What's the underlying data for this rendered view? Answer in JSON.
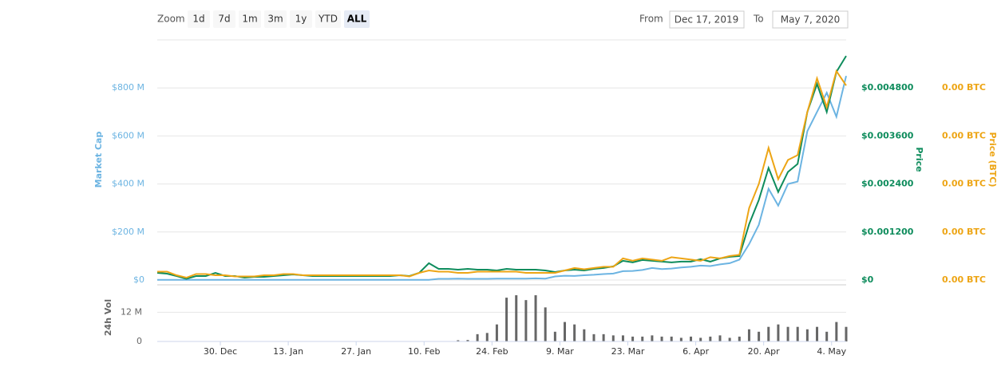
{
  "controls": {
    "zoom_label": "Zoom",
    "buttons": [
      "1d",
      "7d",
      "1m",
      "3m",
      "1y",
      "YTD",
      "ALL"
    ],
    "active": "ALL",
    "from_label": "From",
    "from_value": "Dec 17, 2019",
    "to_label": "To",
    "to_value": "May 7, 2020"
  },
  "chart_data": {
    "type": "line",
    "x": [
      0,
      2,
      4,
      6,
      8,
      10,
      12,
      14,
      16,
      18,
      20,
      22,
      24,
      26,
      28,
      30,
      32,
      34,
      36,
      38,
      40,
      42,
      44,
      46,
      48,
      50,
      52,
      54,
      56,
      58,
      60,
      62,
      64,
      66,
      68,
      70,
      72,
      74,
      76,
      78,
      80,
      82,
      84,
      86,
      88,
      90,
      92,
      94,
      96,
      98,
      100,
      102,
      104,
      106,
      108,
      110,
      112,
      114,
      116,
      118,
      120,
      122,
      124,
      126,
      128,
      130,
      132,
      134,
      136,
      138,
      140,
      142
    ],
    "xlim": [
      0,
      142
    ],
    "xticks": [
      {
        "value": 13,
        "label": "30. Dec"
      },
      {
        "value": 27,
        "label": "13. Jan"
      },
      {
        "value": 41,
        "label": "27. Jan"
      },
      {
        "value": 55,
        "label": "10. Feb"
      },
      {
        "value": 69,
        "label": "24. Feb"
      },
      {
        "value": 83,
        "label": "9. Mar"
      },
      {
        "value": 97,
        "label": "23. Mar"
      },
      {
        "value": 111,
        "label": "6. Apr"
      },
      {
        "value": 125,
        "label": "20. Apr"
      },
      {
        "value": 139,
        "label": "4. May"
      }
    ],
    "ylabel": "Market Cap",
    "ylim": [
      0,
      1000000000
    ],
    "yticks": [
      0,
      {
        "value": 200000000,
        "label": "$200 M"
      },
      {
        "value": 400000000,
        "label": "$400 M"
      },
      {
        "value": 600000000,
        "label": "$600 M"
      },
      {
        "value": 800000000,
        "label": "$800 M"
      }
    ],
    "yticks_zero_label": "$0",
    "y2label": "Price",
    "y2lim": [
      0,
      0.006
    ],
    "y2ticks": [
      {
        "value": 0,
        "label": "$0"
      },
      {
        "value": 0.0012,
        "label": "$0.001200"
      },
      {
        "value": 0.0024,
        "label": "$0.002400"
      },
      {
        "value": 0.0036,
        "label": "$0.003600"
      },
      {
        "value": 0.0048,
        "label": "$0.004800"
      }
    ],
    "y3label": "Price (BTC)",
    "y3lim": [
      0,
      1e-06
    ],
    "y3ticks": [
      {
        "value": 0,
        "label": "0.00 BTC"
      },
      {
        "value": 2e-07,
        "label": "0.00 BTC"
      },
      {
        "value": 4e-07,
        "label": "0.00 BTC"
      },
      {
        "value": 6e-07,
        "label": "0.00 BTC"
      },
      {
        "value": 8e-07,
        "label": "0.00 BTC"
      }
    ],
    "grid": true,
    "series": [
      {
        "name": "Market Cap",
        "color": "#6cb4e2",
        "axis": "y",
        "values": [
          1000000.0,
          1000000.0,
          1000000.0,
          1000000.0,
          1000000.0,
          1000000.0,
          1000000.0,
          1000000.0,
          1000000.0,
          1000000.0,
          1000000.0,
          1000000.0,
          1000000.0,
          1000000.0,
          1000000.0,
          1000000.0,
          1000000.0,
          1000000.0,
          1000000.0,
          1000000.0,
          1000000.0,
          1000000.0,
          1000000.0,
          1000000.0,
          1000000.0,
          1000000.0,
          1000000.0,
          1000000.0,
          1000000.0,
          5000000.0,
          5000000.0,
          6000000.0,
          5000000.0,
          5000000.0,
          5000000.0,
          6000000.0,
          6000000.0,
          6000000.0,
          6000000.0,
          7000000.0,
          6000000.0,
          15000000.0,
          18000000.0,
          17000000.0,
          20000000.0,
          22000000.0,
          25000000.0,
          27000000.0,
          37000000.0,
          38000000.0,
          42000000.0,
          50000000.0,
          46000000.0,
          48000000.0,
          52000000.0,
          55000000.0,
          60000000.0,
          58000000.0,
          65000000.0,
          70000000.0,
          85000000.0,
          150000000.0,
          230000000.0,
          380000000.0,
          310000000.0,
          400000000.0,
          410000000.0,
          620000000.0,
          700000000.0,
          780000000.0,
          680000000.0,
          850000000.0
        ]
      },
      {
        "name": "Price",
        "color": "#0e8c5c",
        "axis": "y2",
        "values": [
          0.00018,
          0.00016,
          0.0001,
          3e-05,
          0.0001,
          0.0001,
          0.00018,
          0.0001,
          0.0001,
          6e-05,
          8e-05,
          8e-05,
          0.0001,
          0.00012,
          0.00014,
          0.00012,
          0.0001,
          0.0001,
          0.0001,
          0.0001,
          0.0001,
          0.0001,
          0.0001,
          0.0001,
          0.0001,
          0.00012,
          0.0001,
          0.00018,
          0.00042,
          0.00028,
          0.00028,
          0.00026,
          0.00028,
          0.00026,
          0.00026,
          0.00024,
          0.00028,
          0.00026,
          0.00026,
          0.00026,
          0.00024,
          0.0002,
          0.00024,
          0.00026,
          0.00024,
          0.00028,
          0.0003,
          0.00034,
          0.00048,
          0.00044,
          0.0005,
          0.00048,
          0.00046,
          0.00044,
          0.00046,
          0.00046,
          0.00052,
          0.00046,
          0.00054,
          0.00058,
          0.0006,
          0.0014,
          0.002,
          0.0028,
          0.0022,
          0.0027,
          0.0029,
          0.0042,
          0.0049,
          0.0042,
          0.0052,
          0.0056
        ]
      },
      {
        "name": "Price (BTC)",
        "color": "#eda515",
        "axis": "y3",
        "values": [
          3.5e-08,
          3.5e-08,
          2e-08,
          1e-08,
          2.5e-08,
          2.5e-08,
          2e-08,
          2e-08,
          1.5e-08,
          1.5e-08,
          1.5e-08,
          2e-08,
          2e-08,
          2.5e-08,
          2.5e-08,
          2e-08,
          2e-08,
          2e-08,
          2e-08,
          2e-08,
          2e-08,
          2e-08,
          2e-08,
          2e-08,
          2e-08,
          2e-08,
          1.5e-08,
          3e-08,
          4e-08,
          3.5e-08,
          3.5e-08,
          3e-08,
          3e-08,
          3.5e-08,
          3.5e-08,
          3.5e-08,
          3.5e-08,
          3.5e-08,
          3e-08,
          3e-08,
          3e-08,
          3e-08,
          4e-08,
          5e-08,
          4.5e-08,
          5e-08,
          5.5e-08,
          5.5e-08,
          9e-08,
          8e-08,
          9e-08,
          8.5e-08,
          8e-08,
          9.5e-08,
          9e-08,
          8.5e-08,
          8e-08,
          9.5e-08,
          9e-08,
          1e-07,
          1.05e-07,
          3e-07,
          4e-07,
          5.5e-07,
          4.2e-07,
          5e-07,
          5.2e-07,
          7e-07,
          8.4e-07,
          7.2e-07,
          8.7e-07,
          8.1e-07
        ]
      }
    ],
    "volume": {
      "name": "24h Vol",
      "color": "#666666",
      "ylim": [
        0,
        20000000
      ],
      "yticks": [
        0,
        {
          "value": 12000000,
          "label": "12 M"
        }
      ],
      "values": [
        0,
        0,
        0,
        0,
        0,
        0,
        0,
        0,
        0,
        0,
        0,
        0,
        0,
        0,
        0,
        0,
        0,
        0,
        0,
        0,
        0,
        0,
        0,
        0,
        0,
        0,
        0,
        0,
        0,
        0,
        0,
        500000.0,
        600000.0,
        3000000.0,
        3500000.0,
        7000000.0,
        18000000.0,
        19000000.0,
        17000000.0,
        19000000.0,
        14000000.0,
        4000000.0,
        8000000.0,
        7000000.0,
        5000000.0,
        3000000.0,
        3000000.0,
        2500000.0,
        2500000.0,
        2000000.0,
        2000000.0,
        2500000.0,
        2000000.0,
        2000000.0,
        1500000.0,
        2000000.0,
        1500000.0,
        2000000.0,
        2500000.0,
        1500000.0,
        2000000.0,
        5000000.0,
        4000000.0,
        6000000.0,
        7000000.0,
        6000000.0,
        6000000.0,
        5000000.0,
        6000000.0,
        4000000.0,
        8000000.0,
        6000000.0
      ]
    }
  }
}
